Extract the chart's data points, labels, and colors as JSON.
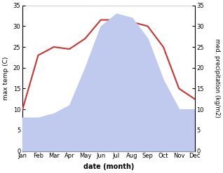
{
  "months": [
    "Jan",
    "Feb",
    "Mar",
    "Apr",
    "May",
    "Jun",
    "Jul",
    "Aug",
    "Sep",
    "Oct",
    "Nov",
    "Dec"
  ],
  "temperature": [
    10,
    23,
    25,
    24.5,
    27,
    31.5,
    31.5,
    31,
    30,
    25,
    15,
    12.5
  ],
  "precipitation": [
    8,
    8,
    9,
    11,
    20,
    30,
    33,
    32,
    27,
    17,
    10,
    10
  ],
  "temp_color": "#cc3333",
  "precip_color": "#c0caee",
  "ylim": [
    0,
    35
  ],
  "yticks": [
    0,
    5,
    10,
    15,
    20,
    25,
    30,
    35
  ],
  "ylabel_left": "max temp (C)",
  "ylabel_right": "med. precipitation (kg/m2)",
  "xlabel": "date (month)",
  "bg_color": "#ffffff"
}
